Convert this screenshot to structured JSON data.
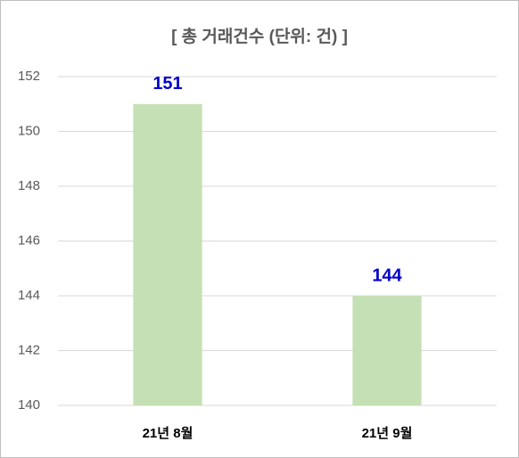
{
  "chart_data": {
    "type": "bar",
    "title": "[ 총 거래건수 (단위: 건) ]",
    "categories": [
      "21년 8월",
      "21년 9월"
    ],
    "values": [
      151,
      144
    ],
    "color": "#c5e0b4",
    "value_label_color": "#0000cc",
    "ylim": [
      140,
      152
    ],
    "yticks": [
      140,
      142,
      144,
      146,
      148,
      150,
      152
    ],
    "grid": true
  }
}
